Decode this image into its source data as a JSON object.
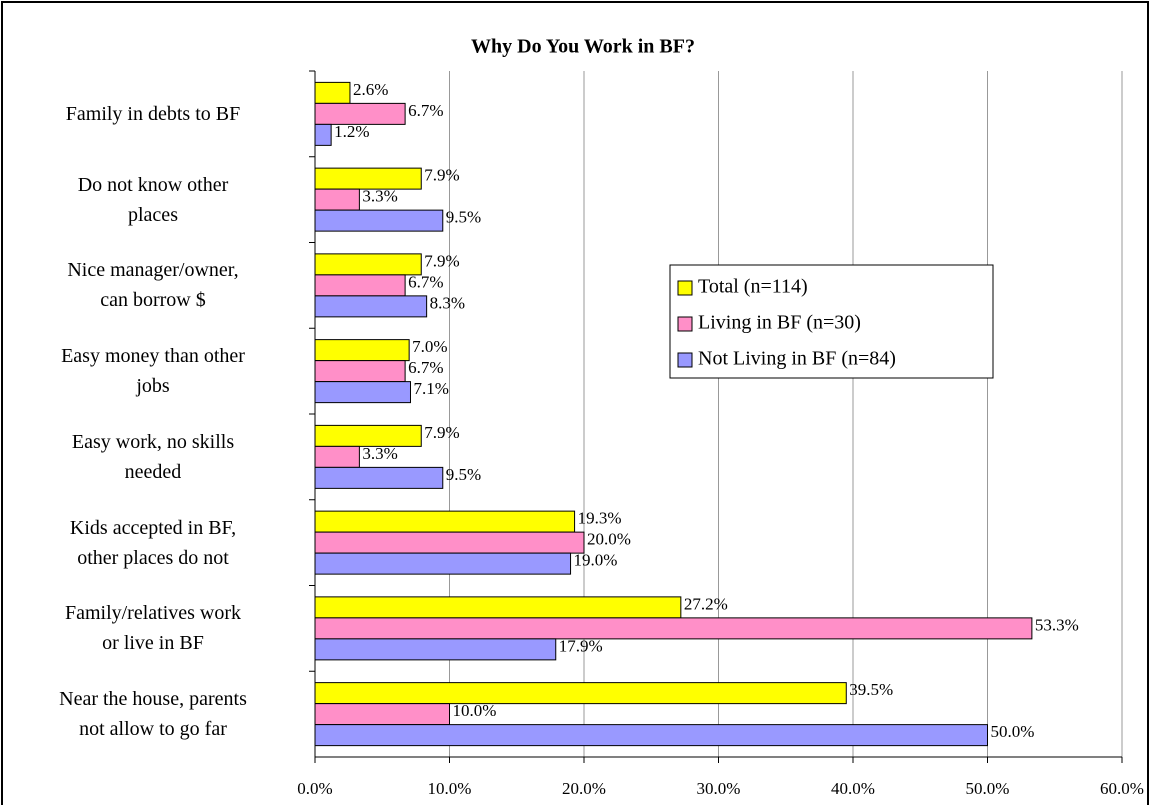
{
  "chart_data": {
    "type": "hbar",
    "title": "Why Do You Work in BF?",
    "categories": [
      "Family in debts to BF",
      "Do not know other\nplaces",
      "Nice manager/owner,\ncan borrow $",
      "Easy money than other\njobs",
      "Easy work, no skills\nneeded",
      "Kids accepted in BF,\nother places do not",
      "Family/relatives work\nor live in BF",
      "Near the house, parents\nnot allow to go far"
    ],
    "series": [
      {
        "name": "Total (n=114)",
        "color": "#ffff00",
        "values": [
          2.6,
          7.9,
          7.9,
          7.0,
          7.9,
          19.3,
          27.2,
          39.5
        ],
        "value_labels": [
          "2.6%",
          "7.9%",
          "7.9%",
          "7.0%",
          "7.9%",
          "19.3%",
          "27.2%",
          "39.5%"
        ]
      },
      {
        "name": "Living in BF (n=30)",
        "color": "#ff8fc8",
        "values": [
          6.7,
          3.3,
          6.7,
          6.7,
          3.3,
          20.0,
          53.3,
          10.0
        ],
        "value_labels": [
          "6.7%",
          "3.3%",
          "6.7%",
          "6.7%",
          "3.3%",
          "20.0%",
          "53.3%",
          "10.0%"
        ]
      },
      {
        "name": "Not Living in BF (n=84)",
        "color": "#9999ff",
        "values": [
          1.2,
          9.5,
          8.3,
          7.1,
          9.5,
          19.0,
          17.9,
          50.0
        ],
        "value_labels": [
          "1.2%",
          "9.5%",
          "8.3%",
          "7.1%",
          "9.5%",
          "19.0%",
          "17.9%",
          "50.0%"
        ]
      }
    ],
    "xlim": [
      0,
      60
    ],
    "xticks": [
      {
        "value": 0,
        "label": "0.0%"
      },
      {
        "value": 10,
        "label": "10.0%"
      },
      {
        "value": 20,
        "label": "20.0%"
      },
      {
        "value": 30,
        "label": "30.0%"
      },
      {
        "value": 40,
        "label": "40.0%"
      },
      {
        "value": 50,
        "label": "50.0%"
      },
      {
        "value": 60,
        "label": "60.0%"
      }
    ],
    "grid": true,
    "legend": "right"
  }
}
